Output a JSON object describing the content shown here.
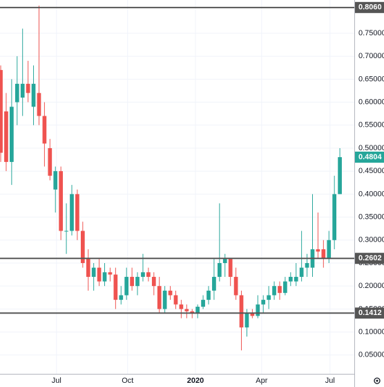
{
  "chart_data": {
    "type": "candlestick",
    "up_color": "#26a69a",
    "down_color": "#ef5350",
    "grid": true,
    "ylim": [
      0.009,
      0.8223
    ],
    "xlim": [
      -0.13,
      64.64
    ],
    "yticks": [
      {
        "value": 0.75,
        "label": "0.75000"
      },
      {
        "value": 0.7,
        "label": "0.70000"
      },
      {
        "value": 0.65,
        "label": "0.65000"
      },
      {
        "value": 0.6,
        "label": "0.60000"
      },
      {
        "value": 0.55,
        "label": "0.55000"
      },
      {
        "value": 0.5,
        "label": "0.50000"
      },
      {
        "value": 0.45,
        "label": "0.45000"
      },
      {
        "value": 0.4,
        "label": "0.40000"
      },
      {
        "value": 0.35,
        "label": "0.35000"
      },
      {
        "value": 0.3,
        "label": "0.30000"
      },
      {
        "value": 0.25,
        "label": "0.25000"
      },
      {
        "value": 0.2,
        "label": "0.20000"
      },
      {
        "value": 0.15,
        "label": "0.15000"
      },
      {
        "value": 0.1,
        "label": "0.10000"
      },
      {
        "value": 0.05,
        "label": "0.05000"
      }
    ],
    "xticks": [
      {
        "value": 10.2,
        "label": "Jul"
      },
      {
        "value": 23.2,
        "label": "Oct"
      },
      {
        "value": 35.6,
        "label": "2020",
        "bold": true
      },
      {
        "value": 47.7,
        "label": "Apr"
      },
      {
        "value": 60.2,
        "label": "Jul"
      }
    ],
    "hlines": [
      {
        "value": 0.806,
        "label": "0.8060",
        "color": "#555555"
      },
      {
        "value": 0.2602,
        "label": "0.2602",
        "color": "#555555"
      },
      {
        "value": 0.1412,
        "label": "0.1412",
        "color": "#555555"
      }
    ],
    "last_price": {
      "value": 0.4804,
      "label": "0.4804",
      "color": "#26a69a"
    },
    "open": [
      0.67,
      0.58,
      0.47,
      0.6,
      0.61,
      0.64,
      0.59,
      0.62,
      0.57,
      0.5,
      0.41,
      0.45,
      0.32,
      0.32,
      0.4,
      0.32,
      0.26,
      0.22,
      0.24,
      0.21,
      0.23,
      0.225,
      0.17,
      0.18,
      0.22,
      0.2,
      0.22,
      0.23,
      0.22,
      0.2,
      0.15,
      0.19,
      0.18,
      0.16,
      0.15,
      0.145,
      0.14,
      0.155,
      0.17,
      0.19,
      0.22,
      0.25,
      0.26,
      0.22,
      0.18,
      0.11,
      0.14,
      0.135,
      0.16,
      0.17,
      0.18,
      0.2,
      0.185,
      0.21,
      0.21,
      0.22,
      0.24,
      0.24,
      0.28,
      0.28,
      0.26,
      0.3,
      0.4
    ],
    "high": [
      0.68,
      0.62,
      0.65,
      0.7,
      0.76,
      0.69,
      0.68,
      0.81,
      0.6,
      0.52,
      0.46,
      0.46,
      0.38,
      0.42,
      0.41,
      0.34,
      0.28,
      0.25,
      0.26,
      0.25,
      0.24,
      0.24,
      0.2,
      0.24,
      0.24,
      0.23,
      0.27,
      0.24,
      0.23,
      0.22,
      0.2,
      0.2,
      0.19,
      0.17,
      0.16,
      0.15,
      0.16,
      0.18,
      0.2,
      0.26,
      0.38,
      0.27,
      0.26,
      0.24,
      0.19,
      0.15,
      0.15,
      0.18,
      0.18,
      0.2,
      0.21,
      0.21,
      0.22,
      0.23,
      0.25,
      0.32,
      0.27,
      0.4,
      0.36,
      0.3,
      0.32,
      0.44,
      0.5
    ],
    "low": [
      0.47,
      0.45,
      0.42,
      0.55,
      0.57,
      0.6,
      0.55,
      0.55,
      0.46,
      0.43,
      0.36,
      0.3,
      0.27,
      0.31,
      0.3,
      0.24,
      0.19,
      0.19,
      0.2,
      0.2,
      0.21,
      0.15,
      0.16,
      0.17,
      0.19,
      0.18,
      0.21,
      0.21,
      0.18,
      0.14,
      0.14,
      0.17,
      0.15,
      0.13,
      0.13,
      0.13,
      0.13,
      0.15,
      0.16,
      0.17,
      0.21,
      0.22,
      0.2,
      0.17,
      0.06,
      0.09,
      0.13,
      0.13,
      0.14,
      0.15,
      0.17,
      0.17,
      0.18,
      0.2,
      0.2,
      0.21,
      0.22,
      0.22,
      0.26,
      0.24,
      0.25,
      0.28,
      0.4
    ],
    "close": [
      0.49,
      0.47,
      0.59,
      0.64,
      0.64,
      0.62,
      0.64,
      0.57,
      0.51,
      0.44,
      0.45,
      0.32,
      0.32,
      0.4,
      0.32,
      0.25,
      0.22,
      0.24,
      0.21,
      0.23,
      0.225,
      0.17,
      0.18,
      0.22,
      0.2,
      0.22,
      0.23,
      0.22,
      0.2,
      0.15,
      0.19,
      0.18,
      0.16,
      0.15,
      0.145,
      0.14,
      0.155,
      0.17,
      0.19,
      0.22,
      0.25,
      0.26,
      0.22,
      0.18,
      0.11,
      0.14,
      0.135,
      0.16,
      0.17,
      0.18,
      0.2,
      0.185,
      0.21,
      0.22,
      0.22,
      0.24,
      0.25,
      0.28,
      0.275,
      0.26,
      0.3,
      0.4,
      0.4804
    ]
  }
}
